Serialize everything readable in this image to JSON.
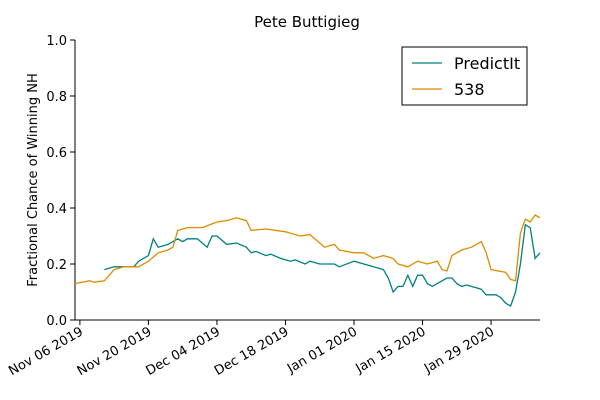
{
  "chart_data": {
    "type": "line",
    "title": "Pete Buttigieg",
    "ylabel": "Fractional Chance of Winning NH",
    "xlim": [
      "2019-11-05",
      "2020-02-08"
    ],
    "xticks": [
      {
        "value": "2019-11-06",
        "label": "Nov 06 2019"
      },
      {
        "value": "2019-11-20",
        "label": "Nov 20 2019"
      },
      {
        "value": "2019-12-04",
        "label": "Dec 04 2019"
      },
      {
        "value": "2019-12-18",
        "label": "Dec 18 2019"
      },
      {
        "value": "2020-01-01",
        "label": "Jan 01 2020"
      },
      {
        "value": "2020-01-15",
        "label": "Jan 15 2020"
      },
      {
        "value": "2020-01-29",
        "label": "Jan 29 2020"
      }
    ],
    "ylim": [
      0,
      1
    ],
    "yticks": [
      {
        "value": 0,
        "label": "0.0"
      },
      0.2,
      0.4,
      0.6,
      0.8,
      {
        "value": 1,
        "label": "1.0"
      }
    ],
    "legend_position": "upper right",
    "series": [
      {
        "name": "PredictIt",
        "color": "#008080",
        "x": [
          "2019-11-11",
          "2019-11-13",
          "2019-11-15",
          "2019-11-17",
          "2019-11-18",
          "2019-11-20",
          "2019-11-21",
          "2019-11-22",
          "2019-11-24",
          "2019-11-26",
          "2019-11-27",
          "2019-11-28",
          "2019-11-30",
          "2019-12-02",
          "2019-12-03",
          "2019-12-04",
          "2019-12-06",
          "2019-12-08",
          "2019-12-10",
          "2019-12-11",
          "2019-12-12",
          "2019-12-14",
          "2019-12-15",
          "2019-12-17",
          "2019-12-19",
          "2019-12-20",
          "2019-12-22",
          "2019-12-23",
          "2019-12-25",
          "2019-12-28",
          "2019-12-29",
          "2020-01-01",
          "2020-01-03",
          "2020-01-05",
          "2020-01-07",
          "2020-01-08",
          "2020-01-09",
          "2020-01-10",
          "2020-01-11",
          "2020-01-12",
          "2020-01-13",
          "2020-01-14",
          "2020-01-15",
          "2020-01-16",
          "2020-01-17",
          "2020-01-18",
          "2020-01-20",
          "2020-01-21",
          "2020-01-22",
          "2020-01-23",
          "2020-01-24",
          "2020-01-25",
          "2020-01-27",
          "2020-01-28",
          "2020-01-30",
          "2020-01-31",
          "2020-02-01",
          "2020-02-02",
          "2020-02-03",
          "2020-02-04",
          "2020-02-05",
          "2020-02-06",
          "2020-02-07",
          "2020-02-08"
        ],
        "values": [
          0.18,
          0.19,
          0.19,
          0.19,
          0.21,
          0.23,
          0.29,
          0.26,
          0.27,
          0.29,
          0.28,
          0.29,
          0.29,
          0.26,
          0.3,
          0.3,
          0.27,
          0.275,
          0.26,
          0.24,
          0.245,
          0.23,
          0.235,
          0.22,
          0.21,
          0.215,
          0.2,
          0.21,
          0.2,
          0.2,
          0.19,
          0.21,
          0.2,
          0.19,
          0.18,
          0.15,
          0.1,
          0.12,
          0.12,
          0.16,
          0.12,
          0.16,
          0.16,
          0.13,
          0.12,
          0.13,
          0.15,
          0.15,
          0.13,
          0.12,
          0.125,
          0.12,
          0.11,
          0.09,
          0.09,
          0.08,
          0.06,
          0.05,
          0.1,
          0.2,
          0.34,
          0.33,
          0.22,
          0.24
        ]
      },
      {
        "name": "538",
        "color": "#e08a00",
        "x": [
          "2019-11-05",
          "2019-11-08",
          "2019-11-09",
          "2019-11-11",
          "2019-11-13",
          "2019-11-15",
          "2019-11-18",
          "2019-11-20",
          "2019-11-22",
          "2019-11-24",
          "2019-11-25",
          "2019-11-26",
          "2019-11-28",
          "2019-12-01",
          "2019-12-04",
          "2019-12-06",
          "2019-12-08",
          "2019-12-10",
          "2019-12-11",
          "2019-12-14",
          "2019-12-18",
          "2019-12-21",
          "2019-12-23",
          "2019-12-24",
          "2019-12-26",
          "2019-12-28",
          "2019-12-29",
          "2020-01-01",
          "2020-01-03",
          "2020-01-05",
          "2020-01-07",
          "2020-01-09",
          "2020-01-10",
          "2020-01-12",
          "2020-01-14",
          "2020-01-16",
          "2020-01-18",
          "2020-01-19",
          "2020-01-20",
          "2020-01-21",
          "2020-01-23",
          "2020-01-25",
          "2020-01-27",
          "2020-01-28",
          "2020-01-29",
          "2020-02-01",
          "2020-02-02",
          "2020-02-03",
          "2020-02-04",
          "2020-02-05",
          "2020-02-06",
          "2020-02-07",
          "2020-02-08"
        ],
        "values": [
          0.13,
          0.14,
          0.135,
          0.14,
          0.18,
          0.19,
          0.19,
          0.21,
          0.24,
          0.25,
          0.26,
          0.32,
          0.33,
          0.33,
          0.35,
          0.355,
          0.365,
          0.355,
          0.32,
          0.325,
          0.315,
          0.3,
          0.305,
          0.29,
          0.26,
          0.27,
          0.25,
          0.24,
          0.24,
          0.22,
          0.23,
          0.22,
          0.2,
          0.19,
          0.21,
          0.2,
          0.21,
          0.18,
          0.175,
          0.23,
          0.25,
          0.26,
          0.28,
          0.24,
          0.18,
          0.17,
          0.145,
          0.14,
          0.31,
          0.36,
          0.35,
          0.375,
          0.365
        ]
      }
    ]
  }
}
